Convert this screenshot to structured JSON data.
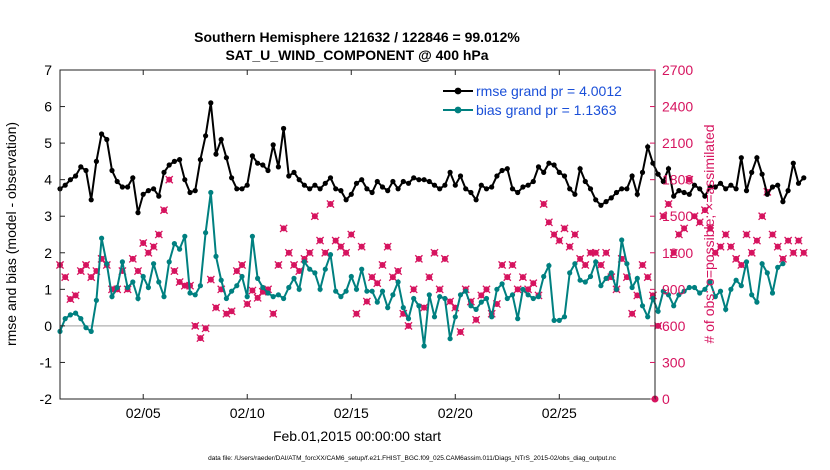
{
  "chart_data": {
    "type": "line",
    "title": "Southern Hemisphere 121632 / 122846 = 99.012%",
    "subtitle": "SAT_U_WIND_COMPONENT @ 400 hPa",
    "xlabel": "Feb.01,2015 00:00:00 start",
    "ylabel_left": "rmse and bias (model - observation)",
    "ylabel_right": "# of obs: o=possible; ×=assimilated",
    "footnote": "data file: /Users/raeder/DAI/ATM_forcXX/CAM6_setup/f.e21.FHIST_BGC.f09_025.CAM6assim.011/Diags_NTrS_2015-02/obs_diag_output.nc",
    "xlim": [
      1,
      29.6
    ],
    "ylim_left": [
      -2,
      7
    ],
    "ylim_right": [
      0,
      2700
    ],
    "x_ticks": [
      5,
      10,
      15,
      20,
      25
    ],
    "x_tick_labels": [
      "02/05",
      "02/10",
      "02/15",
      "02/20",
      "02/25"
    ],
    "y_ticks_left": [
      -2,
      -1,
      0,
      1,
      2,
      3,
      4,
      5,
      6,
      7
    ],
    "y_ticks_right": [
      0,
      300,
      600,
      900,
      1200,
      1500,
      1800,
      2100,
      2400,
      2700
    ],
    "x_start": 1.0,
    "x_step": 0.25,
    "zero_line": 0,
    "legend": [
      {
        "label": "rmse grand pr = 4.0012",
        "series": "rmse"
      },
      {
        "label": "bias grand pr = 1.1363",
        "series": "bias"
      }
    ],
    "series": [
      {
        "name": "rmse",
        "color": "#000000",
        "axis": "left",
        "values": [
          3.75,
          3.85,
          4.0,
          4.1,
          4.35,
          4.25,
          3.45,
          4.5,
          5.25,
          5.1,
          4.25,
          3.95,
          3.8,
          3.8,
          4.05,
          3.1,
          3.6,
          3.7,
          3.75,
          3.55,
          4.2,
          4.4,
          4.5,
          4.55,
          4.0,
          3.65,
          3.7,
          4.55,
          5.2,
          6.1,
          4.7,
          5.1,
          4.6,
          4.05,
          3.75,
          3.75,
          3.85,
          4.65,
          4.45,
          4.4,
          4.25,
          4.95,
          4.35,
          5.4,
          4.1,
          4.2,
          4.0,
          3.85,
          3.75,
          3.85,
          3.75,
          3.9,
          4.05,
          3.75,
          3.7,
          3.45,
          3.6,
          3.9,
          4.0,
          3.75,
          3.65,
          3.95,
          3.8,
          3.7,
          3.95,
          3.75,
          3.95,
          3.9,
          4.05,
          4.0,
          4.0,
          3.95,
          3.85,
          3.75,
          3.85,
          4.2,
          3.85,
          4.1,
          3.75,
          3.65,
          3.45,
          3.85,
          3.75,
          3.8,
          4.1,
          4.25,
          4.3,
          3.75,
          3.65,
          3.8,
          3.85,
          3.95,
          4.35,
          4.2,
          4.45,
          4.4,
          4.2,
          4.1,
          3.75,
          3.6,
          4.3,
          3.95,
          3.75,
          3.45,
          3.3,
          3.4,
          3.5,
          3.65,
          3.75,
          3.75,
          4.1,
          3.6,
          4.2,
          4.9,
          4.45,
          4.15,
          3.95,
          4.3,
          3.55,
          3.7,
          3.65,
          3.6,
          3.85,
          3.75,
          3.55,
          3.8,
          3.8,
          3.9,
          3.75,
          3.85,
          3.75,
          4.6,
          3.7,
          4.2,
          4.6,
          4.15,
          3.6,
          3.8,
          3.85,
          3.4,
          3.7,
          4.45,
          3.9,
          4.05
        ]
      },
      {
        "name": "bias",
        "color": "#008080",
        "axis": "left",
        "values": [
          -0.15,
          0.2,
          0.3,
          0.35,
          0.2,
          -0.05,
          -0.15,
          0.7,
          2.4,
          1.7,
          0.8,
          1.05,
          1.75,
          1.05,
          1.2,
          0.75,
          1.35,
          1.05,
          1.7,
          1.2,
          0.8,
          1.75,
          2.25,
          2.1,
          2.45,
          0.9,
          0.85,
          1.1,
          2.55,
          3.65,
          1.9,
          1.25,
          0.75,
          0.95,
          1.1,
          1.35,
          0.8,
          2.45,
          1.3,
          1.05,
          0.9,
          0.8,
          0.85,
          0.75,
          1.05,
          1.3,
          1.0,
          1.75,
          1.55,
          1.45,
          1.0,
          1.55,
          1.95,
          0.95,
          0.8,
          0.95,
          1.35,
          1.0,
          1.55,
          0.95,
          0.95,
          0.65,
          0.95,
          0.5,
          0.85,
          1.2,
          0.5,
          0.2,
          0.75,
          0.55,
          -0.55,
          0.85,
          0.25,
          0.8,
          0.75,
          -0.35,
          0.25,
          0.85,
          0.95,
          0.55,
          0.45,
          0.65,
          0.75,
          0.25,
          1.0,
          1.15,
          0.75,
          0.85,
          0.2,
          1.0,
          0.85,
          0.75,
          0.8,
          1.35,
          1.65,
          0.15,
          0.15,
          0.25,
          1.45,
          1.7,
          1.25,
          1.2,
          1.35,
          1.75,
          1.1,
          1.3,
          1.45,
          1.0,
          2.35,
          1.7,
          1.05,
          1.3,
          0.55,
          0.25,
          0.75,
          0.4,
          0.95,
          0.85,
          0.55,
          0.85,
          0.95,
          1.05,
          1.05,
          0.9,
          1.0,
          1.2,
          0.8,
          0.95,
          0.45,
          1.0,
          1.25,
          1.1,
          1.75,
          0.85,
          0.65,
          1.7,
          1.45,
          0.9,
          1.6,
          1.7
        ]
      }
    ],
    "obs_assimilated": {
      "color": "#d6145f",
      "axis": "right",
      "values": [
        1100,
        1000,
        820,
        850,
        1050,
        1100,
        1000,
        1050,
        1150,
        1100,
        900,
        900,
        1050,
        900,
        1150,
        1050,
        1280,
        1200,
        1250,
        1350,
        1550,
        1800,
        1050,
        960,
        930,
        930,
        600,
        500,
        580,
        980,
        750,
        900,
        700,
        720,
        1050,
        1100,
        780,
        890,
        830,
        880,
        900,
        700,
        1100,
        1400,
        1200,
        1100,
        1050,
        1150,
        1200,
        1500,
        1300,
        1200,
        1600,
        1300,
        1250,
        1200,
        1350,
        700,
        1250,
        800,
        1000,
        950,
        1100,
        1250,
        1000,
        1050,
        700,
        600,
        900,
        1150,
        750,
        1000,
        1200,
        900,
        1150,
        800,
        750,
        550,
        900,
        800,
        650,
        850,
        900,
        700,
        780,
        1100,
        1000,
        1100,
        900,
        1000,
        900,
        950,
        850,
        1600,
        1450,
        1350,
        1300,
        1400,
        1250,
        1350,
        1150,
        1100,
        1200,
        1200,
        1100,
        1200,
        1000,
        900,
        1150,
        1000,
        700,
        850,
        1100,
        1000,
        850,
        600,
        1500,
        1600,
        1200,
        1350,
        1400,
        1800,
        1500,
        1450,
        1550,
        1400,
        1200,
        1250,
        1350,
        1250,
        1150,
        1100,
        1350,
        1200,
        1300,
        1500,
        1700,
        1350,
        1250,
        1150,
        1300,
        1200,
        1300,
        1200
      ]
    },
    "final_marker_value": 0
  }
}
